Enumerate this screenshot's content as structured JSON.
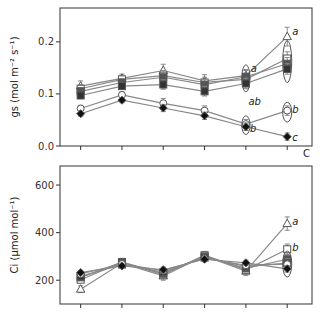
{
  "chart_data": [
    {
      "type": "line",
      "x": [
        1,
        2,
        3,
        4,
        5,
        6
      ],
      "xlim": [
        0.5,
        6.6
      ],
      "xticks": [
        1,
        2,
        3,
        4,
        5,
        6
      ],
      "tick_labels": "y",
      "ylabel": "gs (mol m⁻² s⁻¹)",
      "ylim": [
        0.0,
        0.265
      ],
      "yticks": [
        {
          "value": 0.0,
          "label": "0.0"
        },
        0.1,
        0.2
      ],
      "grid": false,
      "series": [
        {
          "marker": "triangle",
          "color": "#ffffff",
          "values": [
            0.115,
            0.13,
            0.145,
            0.125,
            0.135,
            0.21
          ],
          "errors": [
            0.01,
            0.008,
            0.012,
            0.012,
            0.012,
            0.018
          ]
        },
        {
          "marker": "square",
          "color": "#ffffff",
          "values": [
            0.11,
            0.128,
            0.135,
            0.122,
            0.128,
            0.168
          ],
          "errors": [
            0.008,
            0.007,
            0.01,
            0.01,
            0.01,
            0.013
          ]
        },
        {
          "marker": "square",
          "color": "#555555",
          "values": [
            0.105,
            0.122,
            0.132,
            0.118,
            0.133,
            0.158
          ],
          "errors": [
            0.007,
            0.007,
            0.01,
            0.01,
            0.012,
            0.012
          ]
        },
        {
          "marker": "square",
          "color": "#333333",
          "values": [
            0.097,
            0.115,
            0.118,
            0.105,
            0.12,
            0.148
          ],
          "errors": [
            0.006,
            0.006,
            0.009,
            0.009,
            0.01,
            0.01
          ]
        },
        {
          "marker": "circle",
          "color": "#ffffff",
          "values": [
            0.072,
            0.098,
            0.082,
            0.068,
            0.042,
            0.068
          ],
          "errors": [
            0.006,
            0.006,
            0.009,
            0.009,
            0.009,
            0.009
          ]
        },
        {
          "marker": "diamond",
          "color": "#111111",
          "values": [
            0.062,
            0.088,
            0.073,
            0.058,
            0.037,
            0.018
          ],
          "errors": [
            0.005,
            0.005,
            0.007,
            0.007,
            0.007,
            0.007
          ]
        }
      ],
      "annotations": [
        {
          "text": "a",
          "x": 5.12,
          "y": 0.148
        },
        {
          "text": "ab",
          "x": 5.06,
          "y": 0.085
        },
        {
          "text": "b",
          "x": 5.1,
          "y": 0.033
        },
        {
          "text": "a",
          "x": 6.12,
          "y": 0.22
        },
        {
          "text": "b",
          "x": 6.12,
          "y": 0.07
        },
        {
          "text": "c",
          "x": 6.12,
          "y": 0.016
        },
        {
          "text": "C",
          "x": 6.55,
          "y": -0.008
        }
      ],
      "ellipses": [
        {
          "cx": 5.0,
          "cy": 0.13,
          "w": 0.2,
          "h": 0.052
        },
        {
          "cx": 5.0,
          "cy": 0.04,
          "w": 0.2,
          "h": 0.036
        },
        {
          "cx": 6.0,
          "cy": 0.162,
          "w": 0.22,
          "h": 0.08
        },
        {
          "cx": 6.0,
          "cy": 0.065,
          "w": 0.22,
          "h": 0.038
        }
      ]
    },
    {
      "type": "line",
      "x": [
        1,
        2,
        3,
        4,
        5,
        6
      ],
      "xlim": [
        0.5,
        6.6
      ],
      "xticks": [
        1,
        2,
        3,
        4,
        5,
        6
      ],
      "tick_labels": "y",
      "ylabel": "Ci (μmol mol⁻¹)",
      "ylim": [
        100,
        680
      ],
      "yticks": [
        200,
        400,
        600
      ],
      "grid": false,
      "series": [
        {
          "marker": "triangle",
          "color": "#ffffff",
          "values": [
            162,
            272,
            218,
            302,
            238,
            438
          ],
          "errors": [
            14,
            18,
            18,
            18,
            18,
            28
          ]
        },
        {
          "marker": "square",
          "color": "#ffffff",
          "values": [
            202,
            276,
            224,
            305,
            244,
            330
          ],
          "errors": [
            11,
            16,
            16,
            16,
            16,
            22
          ]
        },
        {
          "marker": "square",
          "color": "#555555",
          "values": [
            212,
            276,
            228,
            300,
            250,
            288
          ],
          "errors": [
            9,
            14,
            14,
            14,
            14,
            18
          ]
        },
        {
          "marker": "square",
          "color": "#333333",
          "values": [
            216,
            266,
            234,
            295,
            258,
            272
          ],
          "errors": [
            9,
            14,
            14,
            14,
            14,
            18
          ]
        },
        {
          "marker": "circle",
          "color": "#ffffff",
          "values": [
            226,
            268,
            240,
            292,
            263,
            267
          ],
          "errors": [
            9,
            11,
            11,
            11,
            11,
            14
          ]
        },
        {
          "marker": "diamond",
          "color": "#111111",
          "values": [
            232,
            260,
            244,
            288,
            273,
            248
          ],
          "errors": [
            9,
            11,
            11,
            11,
            11,
            14
          ]
        }
      ],
      "annotations": [
        {
          "text": "a",
          "x": 6.12,
          "y": 448
        },
        {
          "text": "b",
          "x": 6.12,
          "y": 338
        }
      ],
      "ellipses": [
        {
          "cx": 6.0,
          "cy": 268,
          "w": 0.22,
          "h": 110
        }
      ]
    }
  ]
}
